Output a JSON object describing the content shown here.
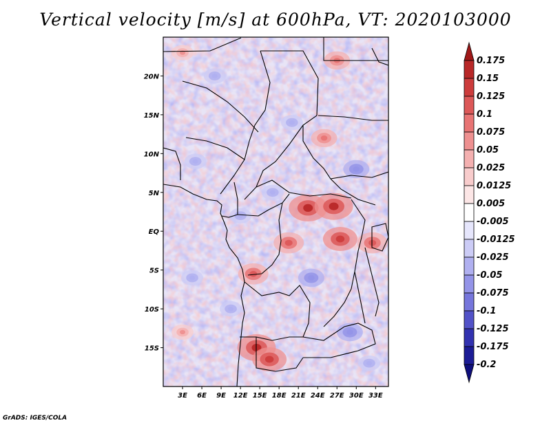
{
  "chart_data": {
    "type": "heatmap",
    "title": "Vertical velocity [m/s] at 600hPa, VT: 2020103000",
    "variable": "Vertical velocity",
    "units": "m/s",
    "level": "600hPa",
    "valid_time": "2020103000",
    "xlabel": "",
    "ylabel": "",
    "xlim": [
      0,
      35
    ],
    "ylim": [
      -20,
      25
    ],
    "x_ticks": [
      {
        "value": 3,
        "label": "3E"
      },
      {
        "value": 6,
        "label": "6E"
      },
      {
        "value": 9,
        "label": "9E"
      },
      {
        "value": 12,
        "label": "12E"
      },
      {
        "value": 15,
        "label": "15E"
      },
      {
        "value": 18,
        "label": "18E"
      },
      {
        "value": 21,
        "label": "21E"
      },
      {
        "value": 24,
        "label": "24E"
      },
      {
        "value": 27,
        "label": "27E"
      },
      {
        "value": 30,
        "label": "30E"
      },
      {
        "value": 33,
        "label": "33E"
      }
    ],
    "y_ticks": [
      {
        "value": 20,
        "label": "20N"
      },
      {
        "value": 15,
        "label": "15N"
      },
      {
        "value": 10,
        "label": "10N"
      },
      {
        "value": 5,
        "label": "5N"
      },
      {
        "value": 0,
        "label": "EQ"
      },
      {
        "value": -5,
        "label": "5S"
      },
      {
        "value": -10,
        "label": "10S"
      },
      {
        "value": -15,
        "label": "15S"
      }
    ],
    "colorbar": {
      "labels": [
        "0.175",
        "0.15",
        "0.125",
        "0.1",
        "0.075",
        "0.05",
        "0.025",
        "0.0125",
        "0.005",
        "-0.005",
        "-0.0125",
        "-0.025",
        "-0.05",
        "-0.075",
        "-0.1",
        "-0.125",
        "-0.175",
        "-0.2"
      ],
      "colors": [
        "#a01818",
        "#b82828",
        "#cc3c3c",
        "#dc5858",
        "#e87474",
        "#ee9090",
        "#f4b0b0",
        "#f8cccc",
        "#fce6e6",
        "#ffffff",
        "#e6e6fc",
        "#ccccf6",
        "#b0b0f0",
        "#9494e8",
        "#7676dc",
        "#5252c8",
        "#3232b0",
        "#1c1c96",
        "#0e0e7c"
      ],
      "extend": "both"
    },
    "features": {
      "positive_maxima": [
        {
          "lon": 22.5,
          "lat": 3.0,
          "value": 0.15
        },
        {
          "lon": 26.5,
          "lat": 3.2,
          "value": 0.15
        },
        {
          "lon": 27.5,
          "lat": -1.0,
          "value": 0.125
        },
        {
          "lon": 14.0,
          "lat": -5.5,
          "value": 0.1
        },
        {
          "lon": 14.5,
          "lat": -15.0,
          "value": 0.15
        },
        {
          "lon": 16.5,
          "lat": -16.5,
          "value": 0.125
        },
        {
          "lon": 19.5,
          "lat": -1.5,
          "value": 0.1
        },
        {
          "lon": 32.5,
          "lat": -1.5,
          "value": 0.1
        },
        {
          "lon": 25.0,
          "lat": 12.0,
          "value": 0.075
        },
        {
          "lon": 3.0,
          "lat": 23.0,
          "value": 0.05
        },
        {
          "lon": 27.0,
          "lat": 22.0,
          "value": 0.075
        },
        {
          "lon": 3.0,
          "lat": -13.0,
          "value": 0.05
        }
      ],
      "negative_minima": [
        {
          "lon": 5.0,
          "lat": 9.0,
          "value": -0.05
        },
        {
          "lon": 8.0,
          "lat": 20.0,
          "value": -0.05
        },
        {
          "lon": 20.0,
          "lat": 14.0,
          "value": -0.05
        },
        {
          "lon": 30.0,
          "lat": 8.0,
          "value": -0.075
        },
        {
          "lon": 4.5,
          "lat": -6.0,
          "value": -0.05
        },
        {
          "lon": 10.5,
          "lat": -10.0,
          "value": -0.05
        },
        {
          "lon": 23.0,
          "lat": -6.0,
          "value": -0.075
        },
        {
          "lon": 29.0,
          "lat": -13.0,
          "value": -0.075
        },
        {
          "lon": 32.0,
          "lat": -17.0,
          "value": -0.05
        },
        {
          "lon": 12.0,
          "lat": 2.0,
          "value": -0.05
        },
        {
          "lon": 17.0,
          "lat": 5.0,
          "value": -0.05
        }
      ]
    }
  },
  "credit": "GrADS: IGES/COLA",
  "colors": {
    "background": "#ffffff",
    "border": "#000000",
    "land_boundaries": "#000000"
  }
}
